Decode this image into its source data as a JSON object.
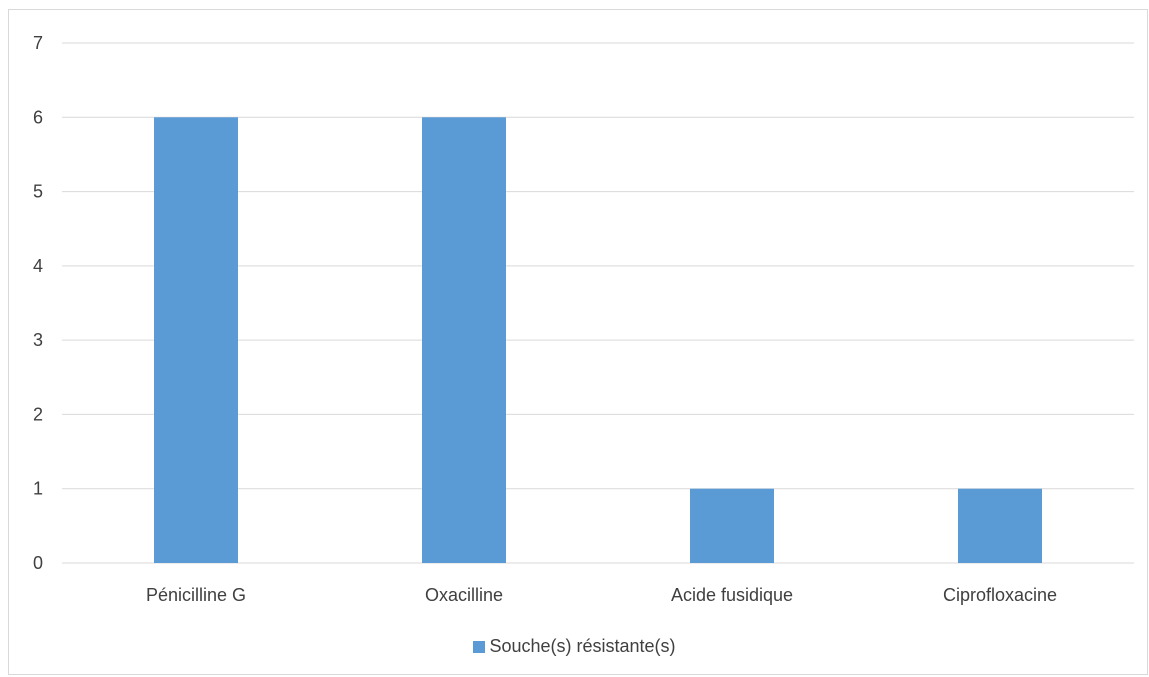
{
  "chart_data": {
    "type": "bar",
    "categories": [
      "Pénicilline G",
      "Oxacilline",
      "Acide fusidique",
      "Ciprofloxacine"
    ],
    "series": [
      {
        "name": "Souche(s) résistante(s)",
        "values": [
          6,
          6,
          1,
          1
        ],
        "color": "#5b9bd5"
      }
    ],
    "title": "",
    "xlabel": "",
    "ylabel": "",
    "ylim": [
      0,
      7
    ],
    "yticks": [
      "0",
      "1",
      "2",
      "3",
      "4",
      "5",
      "6",
      "7"
    ],
    "grid": true,
    "legend_position": "bottom"
  },
  "colors": {
    "bar": "#5b9bd5",
    "grid": "#d9d9d9",
    "text": "#404040"
  }
}
